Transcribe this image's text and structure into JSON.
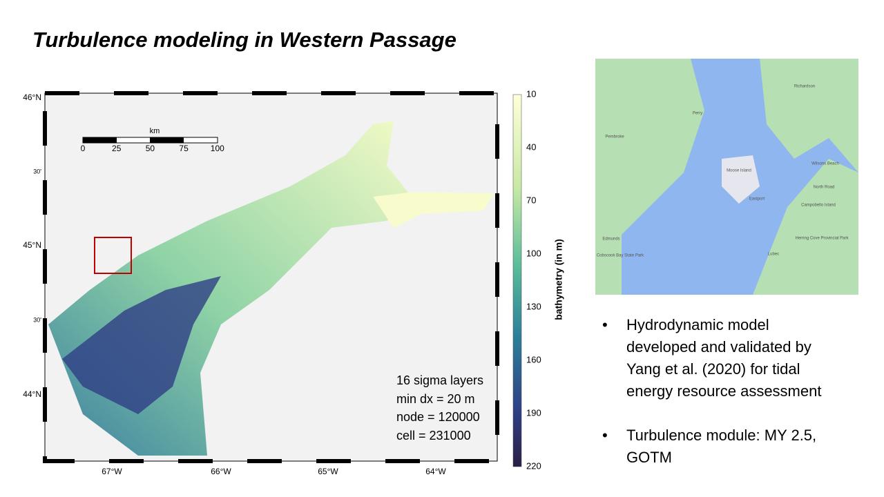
{
  "header": {
    "title": "Turbulence modeling in Western Passage"
  },
  "map": {
    "lat_labels": [
      "46°N",
      "30'",
      "45°N",
      "30'",
      "44°N"
    ],
    "lon_labels": [
      "67°W",
      "66°W",
      "65°W",
      "64°W"
    ],
    "scale_bar": {
      "unit": "km",
      "ticks": [
        "0",
        "25",
        "50",
        "75",
        "100"
      ]
    },
    "colorbar": {
      "label": "bathymetry (in m)",
      "ticks": [
        "10",
        "40",
        "70",
        "100",
        "130",
        "160",
        "190",
        "220"
      ]
    },
    "notes": [
      "16 sigma layers",
      "min dx = 20 m",
      "node = 120000",
      "cell = 231000"
    ]
  },
  "inset": {
    "labels": [
      "Moose Island",
      "Eastport",
      "Campobello Island",
      "Lubec",
      "Pembroke",
      "Perry",
      "Edmunds",
      "Cobscook Bay State Park",
      "Herring Cove Provincial Park",
      "Wilsons Beach",
      "North Road",
      "Richardson"
    ]
  },
  "bullets": [
    {
      "lines": [
        "Hydrodynamic model",
        "developed and validated by",
        "Yang et al. (2020) for tidal",
        "energy resource assessment"
      ]
    },
    {
      "lines": [
        "Turbulence module: MY 2.5,",
        "GOTM"
      ]
    }
  ]
}
